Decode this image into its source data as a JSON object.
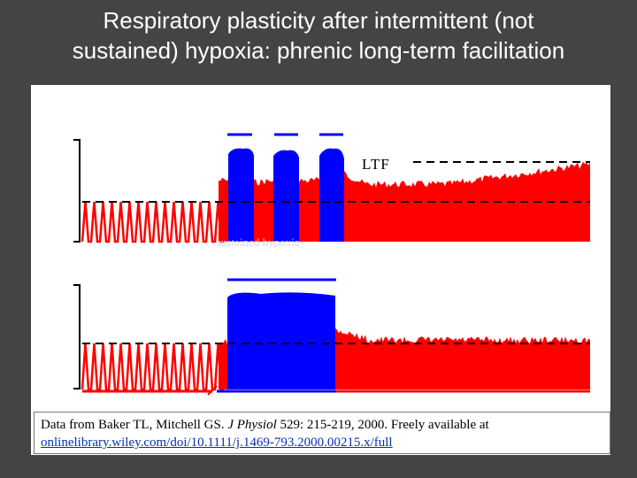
{
  "slide": {
    "title_line1": "Respiratory plasticity after intermittent (not",
    "title_line2": "sustained) hypoxia: phrenic long-term facilitation"
  },
  "figure": {
    "ltf_label": "LTF",
    "colors": {
      "baseline": "#ff0000",
      "hypoxia": "#0000ff",
      "dashed": "#000000"
    }
  },
  "caption": {
    "text_before": "Data from Baker TL, Mitchell GS. ",
    "journal": "J Physiol",
    "text_after": " 529: 215-219, 2000. Freely available at",
    "link": "onlinelibrary.wiley.com/doi/10.1111/j.1469-793.2000.00215.x/full"
  }
}
